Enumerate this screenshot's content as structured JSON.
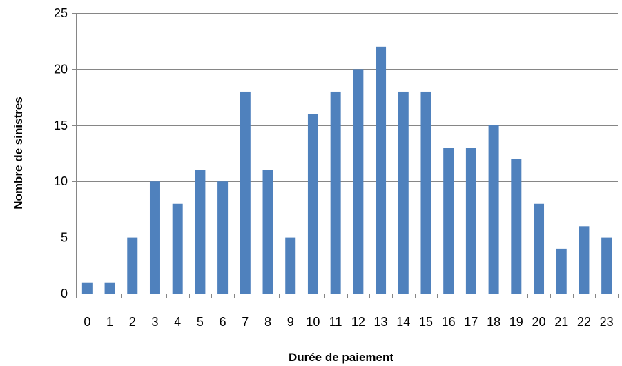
{
  "chart_data": {
    "type": "bar",
    "xlabel": "Durée de paiement",
    "ylabel": "Nombre de sinistres",
    "categories": [
      "0",
      "1",
      "2",
      "3",
      "4",
      "5",
      "6",
      "7",
      "8",
      "9",
      "10",
      "11",
      "12",
      "13",
      "14",
      "15",
      "16",
      "17",
      "18",
      "19",
      "20",
      "21",
      "22",
      "23"
    ],
    "values": [
      1,
      1,
      5,
      10,
      8,
      11,
      10,
      18,
      11,
      5,
      16,
      18,
      20,
      22,
      18,
      18,
      13,
      13,
      15,
      12,
      8,
      4,
      6,
      5
    ],
    "ylim": [
      0,
      25
    ],
    "yticks": [
      0,
      5,
      10,
      15,
      20,
      25
    ],
    "grid": "horizontal",
    "legend": "none",
    "colors": {
      "bar": "#4F81BD",
      "grid": "#868686",
      "axis": "#868686"
    }
  }
}
